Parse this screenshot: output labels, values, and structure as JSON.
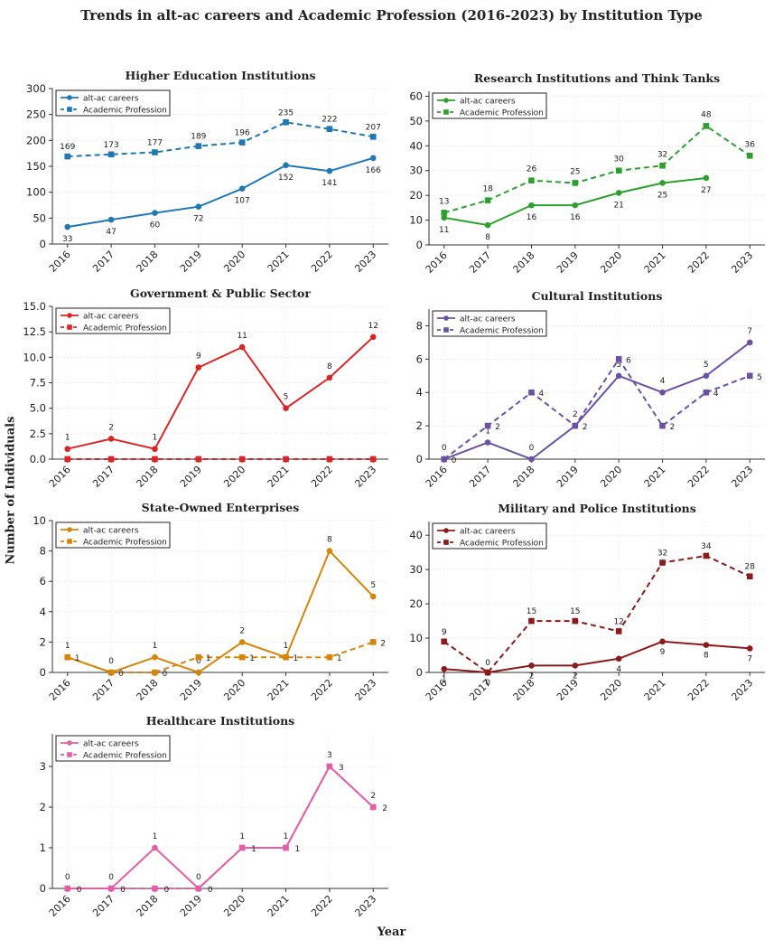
{
  "figure": {
    "title": "Trends in alt-ac careers and Academic Profession (2016-2023) by Institution Type",
    "ylabel": "Number of Individuals",
    "xlabel": "Year"
  },
  "chart_data": [
    {
      "type": "line",
      "title": "Higher Education Institutions",
      "color": "#1f77b4",
      "x": [
        "2016",
        "2017",
        "2018",
        "2019",
        "2020",
        "2021",
        "2022",
        "2023"
      ],
      "yticks": [
        0,
        50,
        100,
        150,
        200,
        250,
        300
      ],
      "ytick_labels": [
        "0",
        "50",
        "100",
        "150",
        "200",
        "250",
        "300"
      ],
      "ylim": [
        0,
        300
      ],
      "series": [
        {
          "name": "alt-ac careers",
          "style": "solid",
          "marker": "circle",
          "values": [
            33,
            47,
            60,
            72,
            107,
            152,
            141,
            166
          ]
        },
        {
          "name": "Academic Profession",
          "style": "dashed",
          "marker": "square",
          "values": [
            169,
            173,
            177,
            189,
            196,
            235,
            222,
            207
          ]
        }
      ]
    },
    {
      "type": "line",
      "title": "Research Institutions and Think Tanks",
      "color": "#2ca02c",
      "x": [
        "2016",
        "2017",
        "2018",
        "2019",
        "2020",
        "2021",
        "2022",
        "2023"
      ],
      "yticks": [
        0,
        10,
        20,
        30,
        40,
        50,
        60
      ],
      "ytick_labels": [
        "0",
        "10",
        "20",
        "30",
        "40",
        "50",
        "60"
      ],
      "ylim": [
        0,
        62
      ],
      "series": [
        {
          "name": "alt-ac careers",
          "style": "solid",
          "marker": "circle",
          "values": [
            11,
            8,
            16,
            16,
            21,
            25,
            27,
            null
          ]
        },
        {
          "name": "Academic Profession",
          "style": "dashed",
          "marker": "square",
          "values": [
            13,
            18,
            26,
            25,
            30,
            32,
            48,
            36
          ]
        }
      ]
    },
    {
      "type": "line",
      "title": "Government & Public Sector",
      "color": "#d62728",
      "x": [
        "2016",
        "2017",
        "2018",
        "2019",
        "2020",
        "2021",
        "2022",
        "2023"
      ],
      "yticks": [
        0,
        2.5,
        5,
        7.5,
        10,
        12.5,
        15
      ],
      "ytick_labels": [
        "0.0",
        "2.5",
        "5.0",
        "7.5",
        "10.0",
        "12.5",
        "15.0"
      ],
      "ylim": [
        0,
        15
      ],
      "series": [
        {
          "name": "alt-ac careers",
          "style": "solid",
          "marker": "circle",
          "values": [
            1,
            2,
            1,
            9,
            11,
            5,
            8,
            12
          ]
        },
        {
          "name": "Academic Profession",
          "style": "dashed",
          "marker": "square",
          "values": [
            0,
            0,
            0,
            0,
            0,
            0,
            0,
            0
          ]
        }
      ]
    },
    {
      "type": "line",
      "title": "Cultural Institutions",
      "color": "#6a51a3",
      "x": [
        "2016",
        "2017",
        "2018",
        "2019",
        "2020",
        "2021",
        "2022",
        "2023"
      ],
      "yticks": [
        0,
        2,
        4,
        6,
        8
      ],
      "ytick_labels": [
        "0",
        "2",
        "4",
        "6",
        "8"
      ],
      "ylim": [
        0,
        9
      ],
      "series": [
        {
          "name": "alt-ac careers",
          "style": "solid",
          "marker": "circle",
          "values": [
            0,
            1,
            0,
            2,
            5,
            4,
            5,
            7
          ]
        },
        {
          "name": "Academic Profession",
          "style": "dashed",
          "marker": "square",
          "values": [
            0,
            2,
            4,
            2,
            6,
            2,
            4,
            5
          ]
        }
      ]
    },
    {
      "type": "line",
      "title": "State-Owned Enterprises",
      "color": "#d4860b",
      "x": [
        "2016",
        "2017",
        "2018",
        "2019",
        "2020",
        "2021",
        "2022",
        "2023"
      ],
      "yticks": [
        0,
        2,
        4,
        6,
        8,
        10
      ],
      "ytick_labels": [
        "0",
        "2",
        "4",
        "6",
        "8",
        "10"
      ],
      "ylim": [
        0,
        10
      ],
      "series": [
        {
          "name": "alt-ac careers",
          "style": "solid",
          "marker": "circle",
          "values": [
            1,
            0,
            1,
            0,
            2,
            1,
            8,
            5
          ]
        },
        {
          "name": "Academic Profession",
          "style": "dashed",
          "marker": "square",
          "values": [
            1,
            0,
            0,
            1,
            1,
            1,
            1,
            2
          ]
        }
      ]
    },
    {
      "type": "line",
      "title": "Military and Police Institutions",
      "color": "#8b1a1a",
      "x": [
        "2016",
        "2017",
        "2018",
        "2019",
        "2020",
        "2021",
        "2022",
        "2023"
      ],
      "yticks": [
        0,
        10,
        20,
        30,
        40
      ],
      "ytick_labels": [
        "0",
        "10",
        "20",
        "30",
        "40"
      ],
      "ylim": [
        0,
        44
      ],
      "series": [
        {
          "name": "alt-ac careers",
          "style": "solid",
          "marker": "circle",
          "values": [
            1,
            0,
            2,
            2,
            4,
            9,
            8,
            7
          ]
        },
        {
          "name": "Academic Profession",
          "style": "dashed",
          "marker": "square",
          "values": [
            9,
            0,
            15,
            15,
            12,
            32,
            34,
            28
          ]
        }
      ]
    },
    {
      "type": "line",
      "title": "Healthcare Institutions",
      "color": "#e05fa8",
      "x": [
        "2016",
        "2017",
        "2018",
        "2019",
        "2020",
        "2021",
        "2022",
        "2023"
      ],
      "yticks": [
        0,
        1,
        2,
        3
      ],
      "ytick_labels": [
        "0",
        "1",
        "2",
        "3"
      ],
      "ylim": [
        0,
        3.8
      ],
      "series": [
        {
          "name": "alt-ac careers",
          "style": "solid",
          "marker": "circle",
          "values": [
            0,
            0,
            1,
            0,
            1,
            1,
            3,
            2
          ]
        },
        {
          "name": "Academic Profession",
          "style": "dashed",
          "marker": "square",
          "values": [
            0,
            0,
            0,
            0,
            1,
            1,
            3,
            2
          ]
        }
      ]
    }
  ]
}
